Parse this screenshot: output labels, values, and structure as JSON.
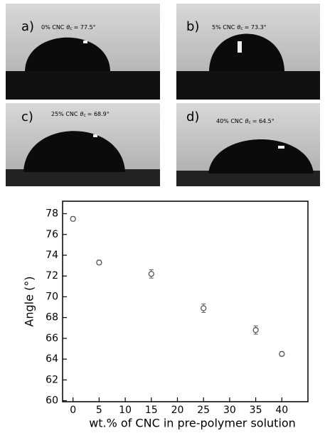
{
  "panels": [
    {
      "label": "a)",
      "text": "0% CNC",
      "symbol": "θ",
      "sub": "c",
      "value": "= 77.5°"
    },
    {
      "label": "b)",
      "text": "5% CNC",
      "symbol": "θ",
      "sub": "c",
      "value": "= 73.3°"
    },
    {
      "label": "c)",
      "text": "25% CNC",
      "symbol": "θ",
      "sub": "c",
      "value": "= 68.9°"
    },
    {
      "label": "d)",
      "text": "40% CNC",
      "symbol": "θ",
      "sub": "c",
      "value": "= 64.5°"
    }
  ],
  "chart_data": {
    "type": "scatter",
    "x_label": "wt.% of CNC in pre-polymer solution",
    "y_label": "Angle (°)",
    "x": [
      0,
      5,
      15,
      25,
      35,
      40
    ],
    "series": [
      {
        "color": "#555555",
        "values": [
          77.5,
          73.3,
          72.2,
          68.9,
          66.8,
          64.5
        ],
        "errors": [
          0.2,
          0.2,
          0.4,
          0.4,
          0.4,
          0.2
        ]
      }
    ],
    "xlim": [
      -2,
      45
    ],
    "ylim": [
      59.9,
      79.2
    ],
    "xticks": [
      0,
      5,
      10,
      15,
      20,
      25,
      30,
      35,
      40
    ],
    "yticks": [
      60,
      62,
      64,
      66,
      68,
      70,
      72,
      74,
      76,
      78
    ]
  }
}
